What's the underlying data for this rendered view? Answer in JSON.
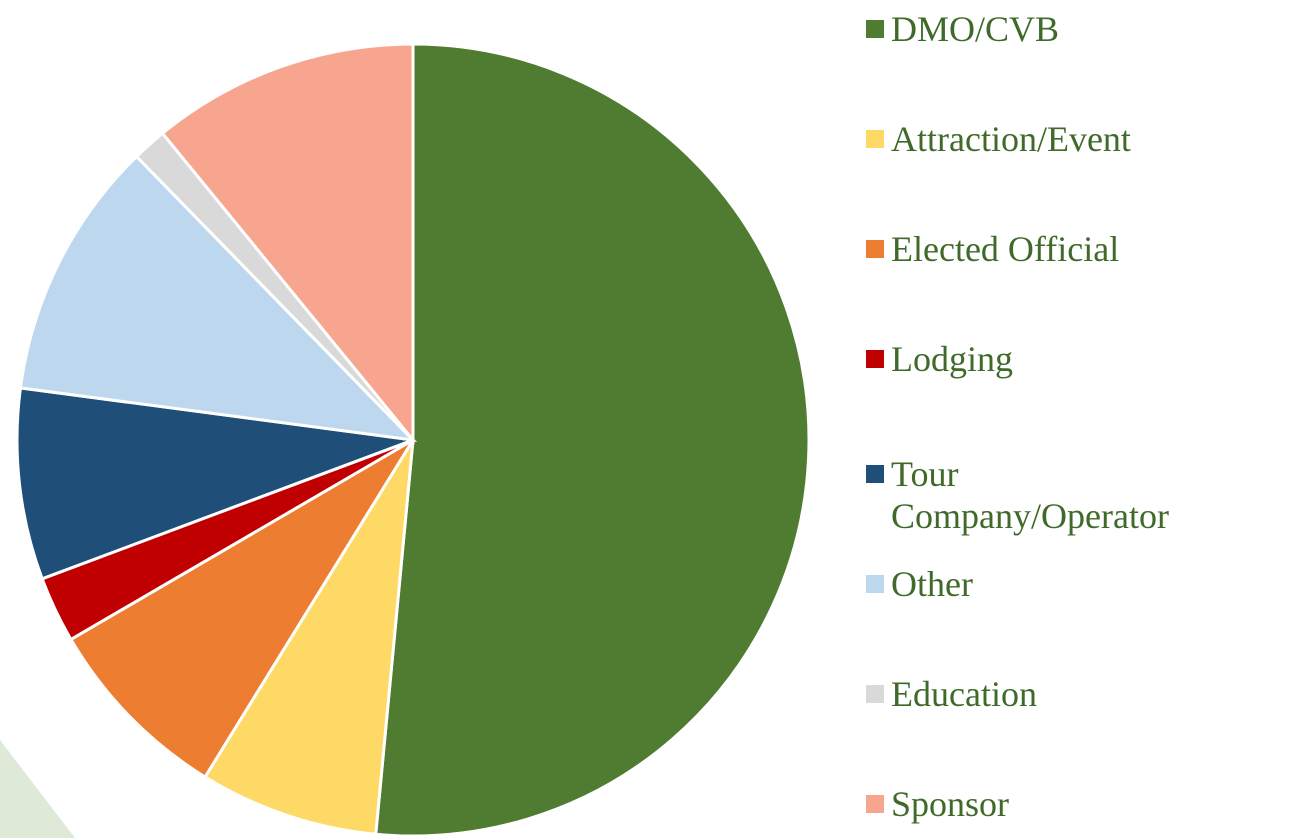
{
  "chart_data": {
    "type": "pie",
    "categories": [
      "DMO/CVB",
      "Attraction/Event",
      "Elected Official",
      "Lodging",
      "Tour Company/Operator",
      "Other",
      "Education",
      "Sponsor"
    ],
    "values": [
      51.5,
      7.3,
      7.8,
      2.7,
      7.8,
      10.6,
      1.4,
      10.9
    ],
    "colors": [
      "#507c32",
      "#ffd966",
      "#ed7d31",
      "#c00000",
      "#1f4e79",
      "#bdd7ee",
      "#d9d9d9",
      "#f8a58f"
    ],
    "legend": "right"
  }
}
